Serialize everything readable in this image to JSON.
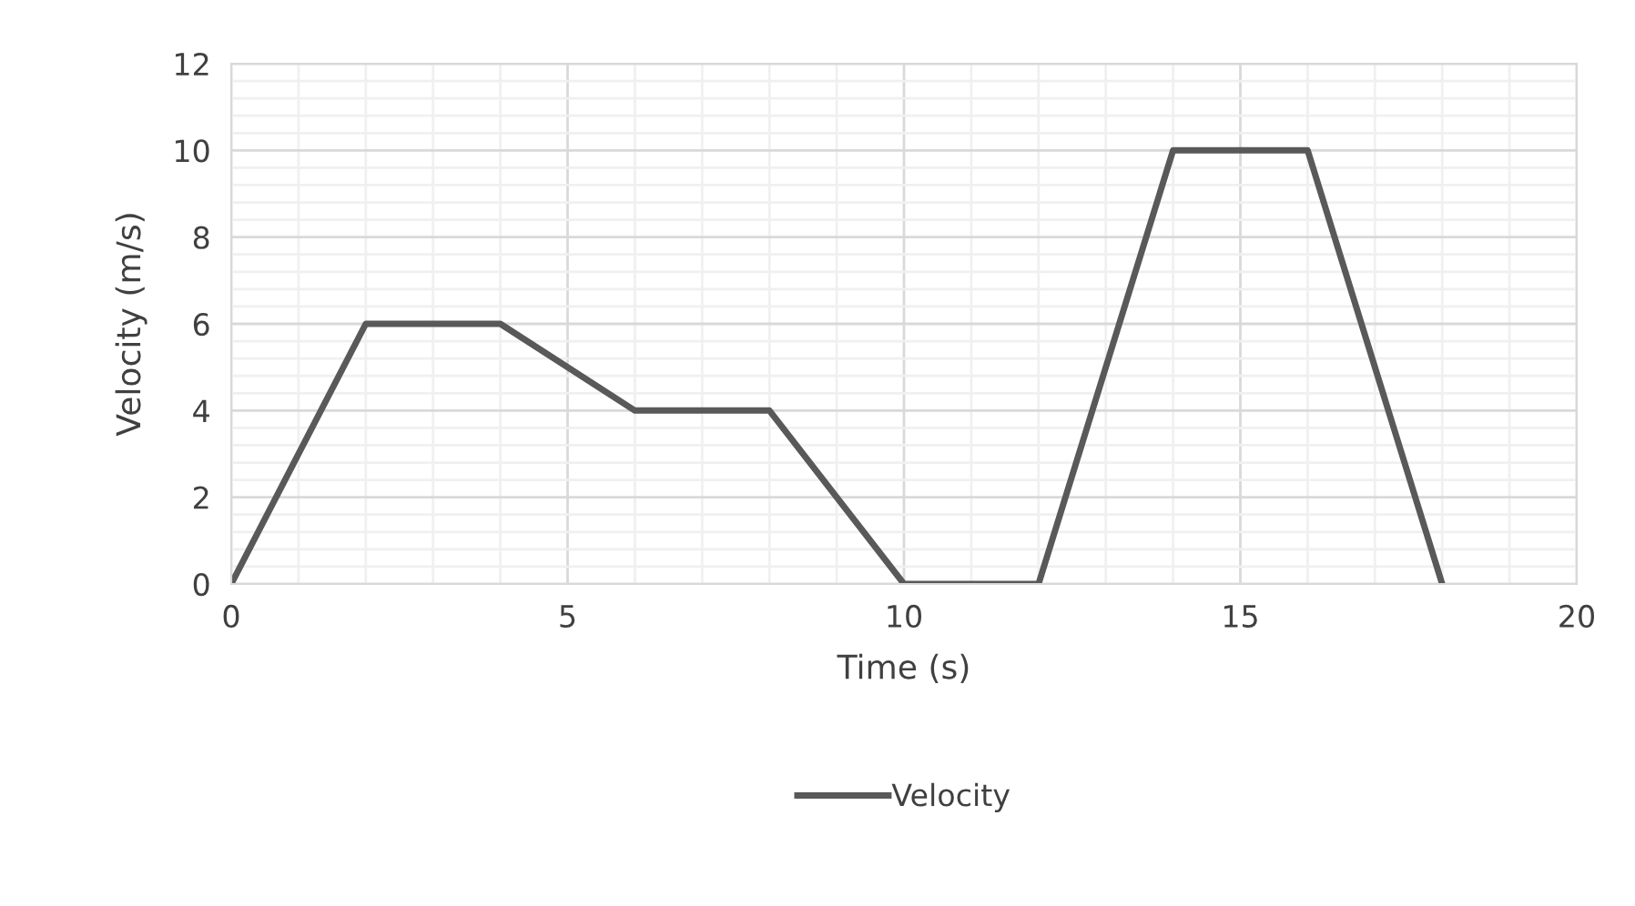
{
  "chart_data": {
    "type": "line",
    "xlabel": "Time (s)",
    "ylabel": "Velocity (m/s)",
    "x": [
      0,
      2,
      4,
      6,
      8,
      10,
      12,
      14,
      16,
      18
    ],
    "series": [
      {
        "name": "Velocity",
        "color": "#595959",
        "values": [
          0,
          6,
          6,
          4,
          4,
          0,
          0,
          10,
          10,
          0
        ]
      }
    ],
    "xlim": [
      0,
      20
    ],
    "xticks": [
      0,
      5,
      10,
      15,
      20
    ],
    "ylim": [
      0,
      12
    ],
    "yticks": [
      0,
      2,
      4,
      6,
      8,
      10,
      12
    ],
    "grid": true,
    "legend": "bottom",
    "marker": "none",
    "line_style": "solid"
  }
}
